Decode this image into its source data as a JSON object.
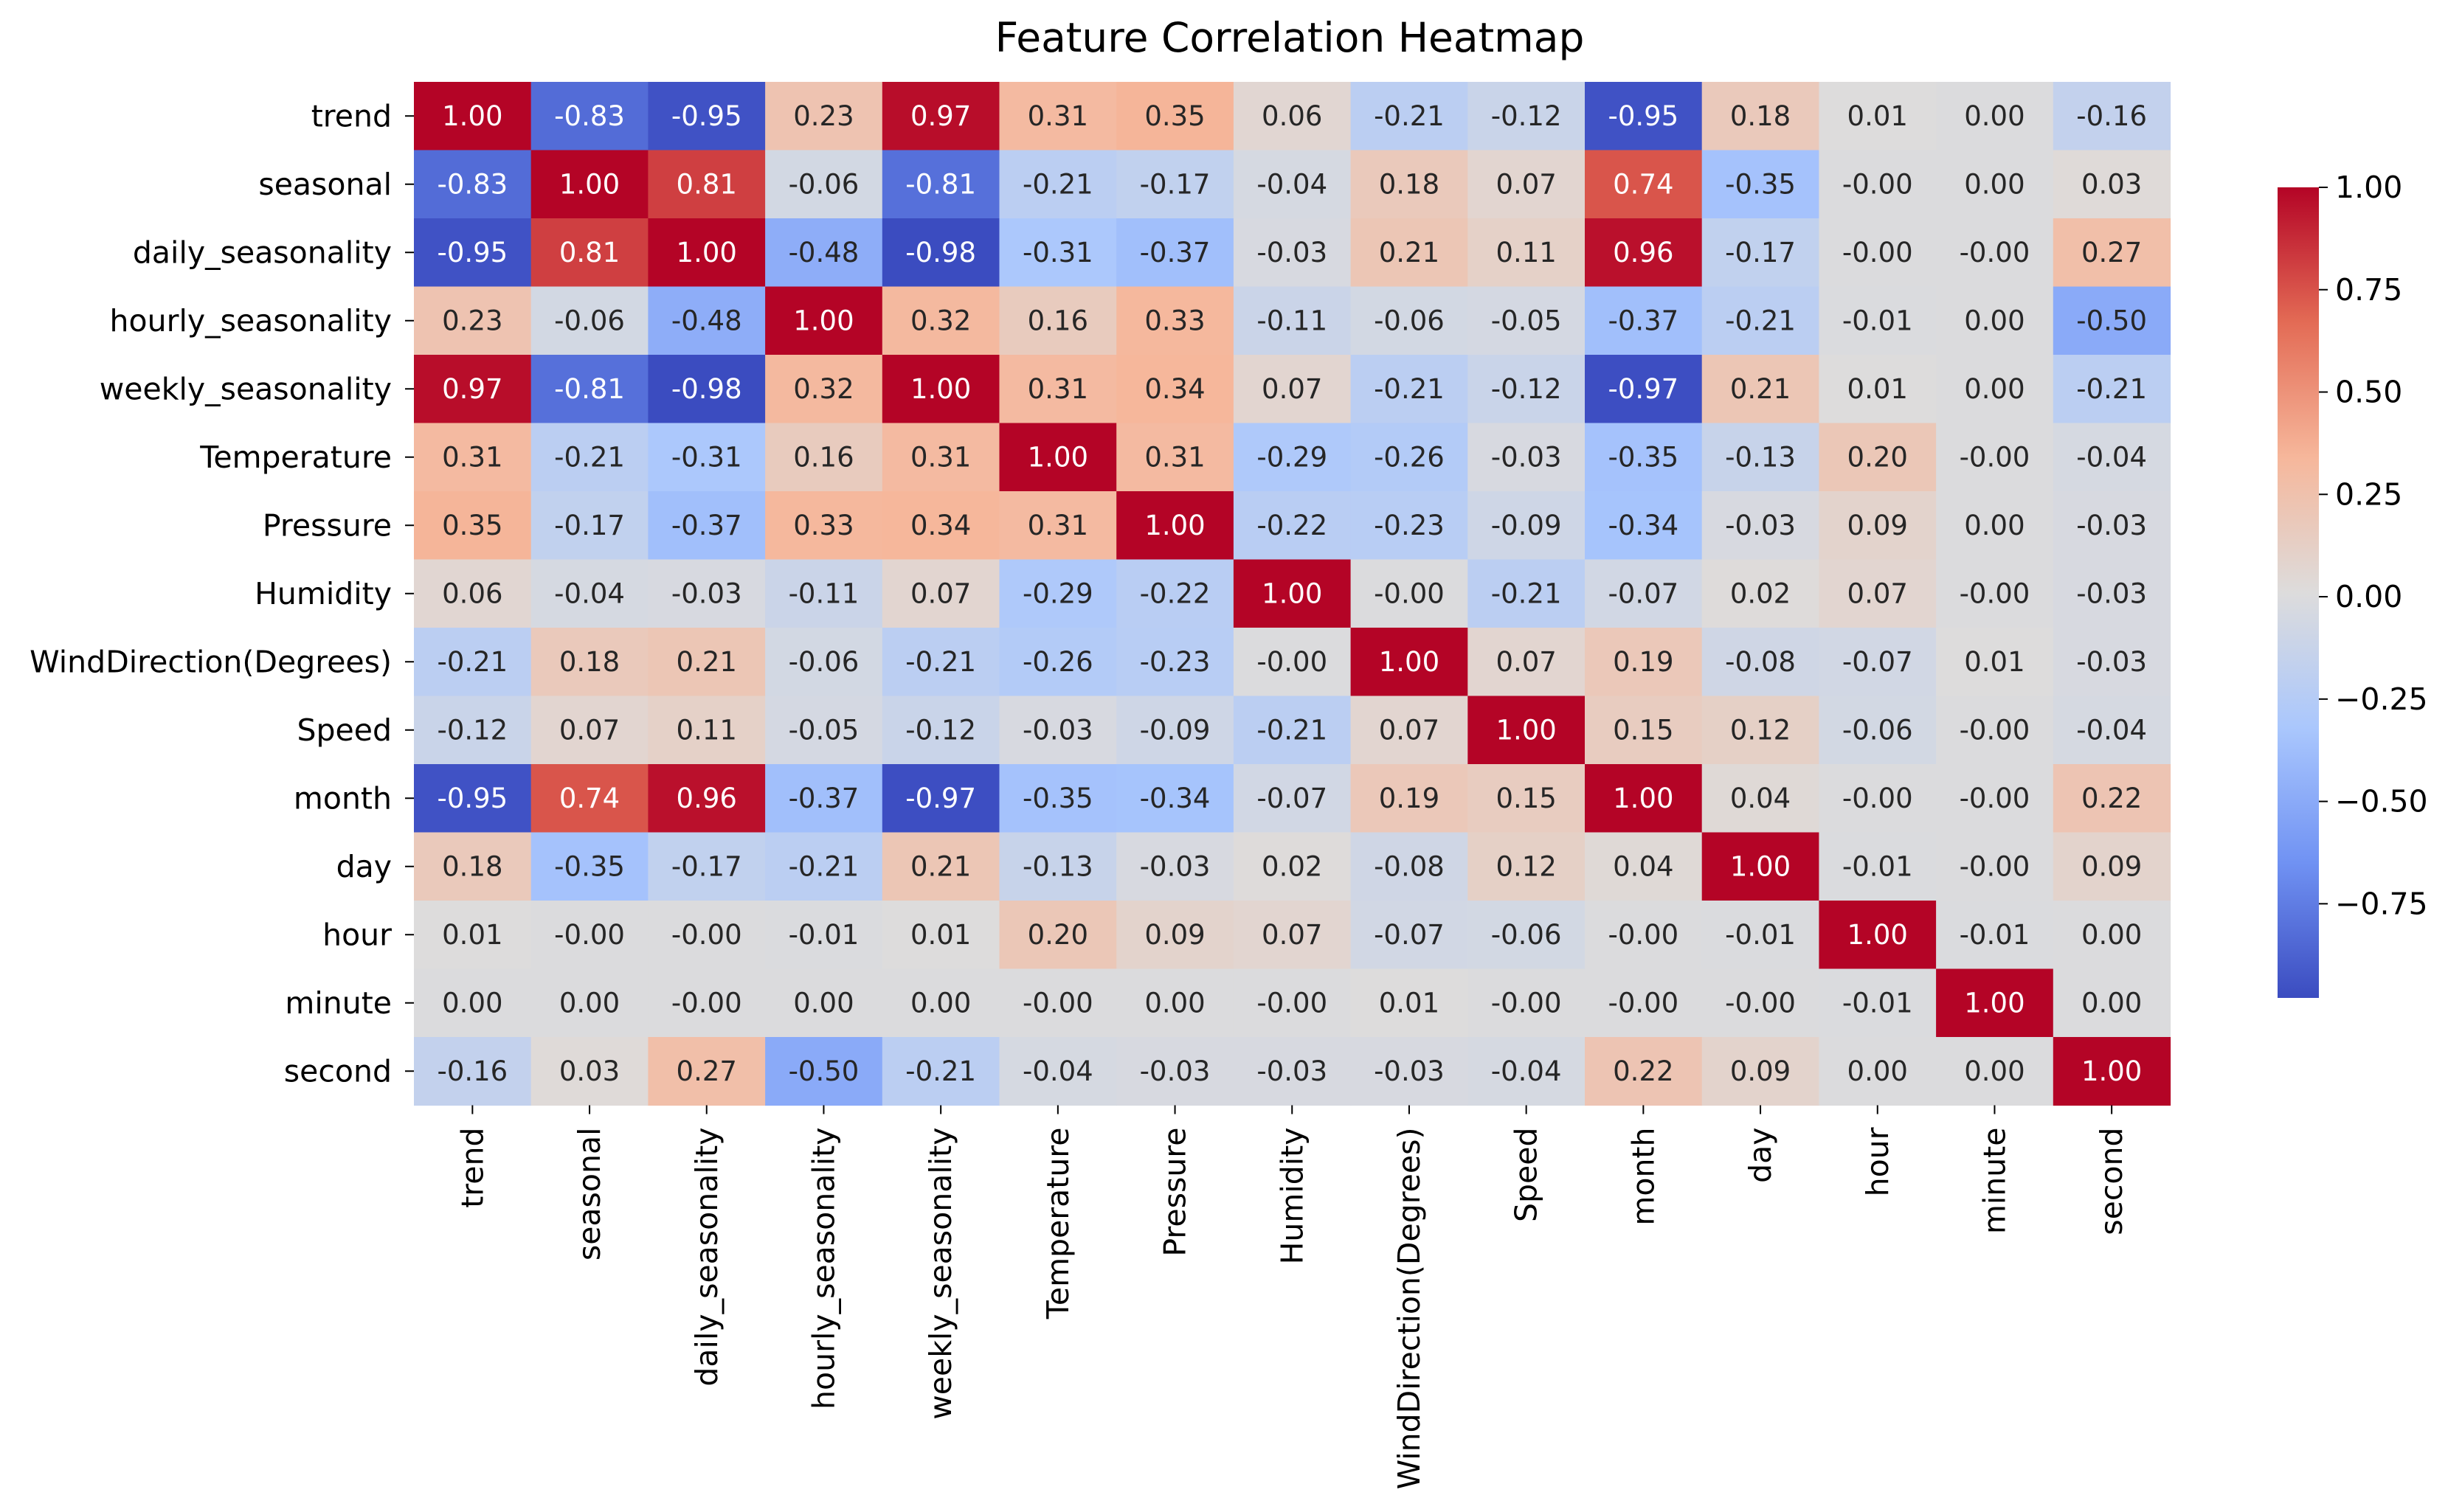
{
  "chart_data": {
    "type": "heatmap",
    "title": "Feature Correlation Heatmap",
    "xlabel": "",
    "ylabel": "",
    "labels": [
      "trend",
      "seasonal",
      "daily_seasonality",
      "hourly_seasonality",
      "weekly_seasonality",
      "Temperature",
      "Pressure",
      "Humidity",
      "WindDirection(Degrees)",
      "Speed",
      "month",
      "day",
      "hour",
      "minute",
      "second"
    ],
    "cell_labels": [
      [
        "1.00",
        "-0.83",
        "-0.95",
        "0.23",
        "0.97",
        "0.31",
        "0.35",
        "0.06",
        "-0.21",
        "-0.12",
        "-0.95",
        "0.18",
        "0.01",
        "0.00",
        "-0.16"
      ],
      [
        "-0.83",
        "1.00",
        "0.81",
        "-0.06",
        "-0.81",
        "-0.21",
        "-0.17",
        "-0.04",
        "0.18",
        "0.07",
        "0.74",
        "-0.35",
        "-0.00",
        "0.00",
        "0.03"
      ],
      [
        "-0.95",
        "0.81",
        "1.00",
        "-0.48",
        "-0.98",
        "-0.31",
        "-0.37",
        "-0.03",
        "0.21",
        "0.11",
        "0.96",
        "-0.17",
        "-0.00",
        "-0.00",
        "0.27"
      ],
      [
        "0.23",
        "-0.06",
        "-0.48",
        "1.00",
        "0.32",
        "0.16",
        "0.33",
        "-0.11",
        "-0.06",
        "-0.05",
        "-0.37",
        "-0.21",
        "-0.01",
        "0.00",
        "-0.50"
      ],
      [
        "0.97",
        "-0.81",
        "-0.98",
        "0.32",
        "1.00",
        "0.31",
        "0.34",
        "0.07",
        "-0.21",
        "-0.12",
        "-0.97",
        "0.21",
        "0.01",
        "0.00",
        "-0.21"
      ],
      [
        "0.31",
        "-0.21",
        "-0.31",
        "0.16",
        "0.31",
        "1.00",
        "0.31",
        "-0.29",
        "-0.26",
        "-0.03",
        "-0.35",
        "-0.13",
        "0.20",
        "-0.00",
        "-0.04"
      ],
      [
        "0.35",
        "-0.17",
        "-0.37",
        "0.33",
        "0.34",
        "0.31",
        "1.00",
        "-0.22",
        "-0.23",
        "-0.09",
        "-0.34",
        "-0.03",
        "0.09",
        "0.00",
        "-0.03"
      ],
      [
        "0.06",
        "-0.04",
        "-0.03",
        "-0.11",
        "0.07",
        "-0.29",
        "-0.22",
        "1.00",
        "-0.00",
        "-0.21",
        "-0.07",
        "0.02",
        "0.07",
        "-0.00",
        "-0.03"
      ],
      [
        "-0.21",
        "0.18",
        "0.21",
        "-0.06",
        "-0.21",
        "-0.26",
        "-0.23",
        "-0.00",
        "1.00",
        "0.07",
        "0.19",
        "-0.08",
        "-0.07",
        "0.01",
        "-0.03"
      ],
      [
        "-0.12",
        "0.07",
        "0.11",
        "-0.05",
        "-0.12",
        "-0.03",
        "-0.09",
        "-0.21",
        "0.07",
        "1.00",
        "0.15",
        "0.12",
        "-0.06",
        "-0.00",
        "-0.04"
      ],
      [
        "-0.95",
        "0.74",
        "0.96",
        "-0.37",
        "-0.97",
        "-0.35",
        "-0.34",
        "-0.07",
        "0.19",
        "0.15",
        "1.00",
        "0.04",
        "-0.00",
        "-0.00",
        "0.22"
      ],
      [
        "0.18",
        "-0.35",
        "-0.17",
        "-0.21",
        "0.21",
        "-0.13",
        "-0.03",
        "0.02",
        "-0.08",
        "0.12",
        "0.04",
        "1.00",
        "-0.01",
        "-0.00",
        "0.09"
      ],
      [
        "0.01",
        "-0.00",
        "-0.00",
        "-0.01",
        "0.01",
        "0.20",
        "0.09",
        "0.07",
        "-0.07",
        "-0.06",
        "-0.00",
        "-0.01",
        "1.00",
        "-0.01",
        "0.00"
      ],
      [
        "0.00",
        "0.00",
        "-0.00",
        "0.00",
        "0.00",
        "-0.00",
        "0.00",
        "-0.00",
        "0.01",
        "-0.00",
        "-0.00",
        "-0.00",
        "-0.01",
        "1.00",
        "0.00"
      ],
      [
        "-0.16",
        "0.03",
        "0.27",
        "-0.50",
        "-0.21",
        "-0.04",
        "-0.03",
        "-0.03",
        "-0.03",
        "-0.04",
        "0.22",
        "0.09",
        "0.00",
        "0.00",
        "1.00"
      ]
    ],
    "colormap": "coolwarm",
    "colormap_stops": [
      "#3b4cc0",
      "#7092f3",
      "#aac7fd",
      "#dddcdc",
      "#f6b79b",
      "#e36b55",
      "#b40426"
    ],
    "value_range": [
      -0.98,
      1.0
    ],
    "colorbar_ticks": [
      "1.00",
      "0.75",
      "0.50",
      "0.25",
      "0.00",
      "−0.25",
      "−0.50",
      "−0.75"
    ],
    "colorbar_tick_values": [
      1.0,
      0.75,
      0.5,
      0.25,
      0.0,
      -0.25,
      -0.5,
      -0.75
    ],
    "annotation_colors": {
      "light": "#ffffff",
      "dark": "#262626"
    },
    "legend": "colorbar-right",
    "grid": false
  }
}
